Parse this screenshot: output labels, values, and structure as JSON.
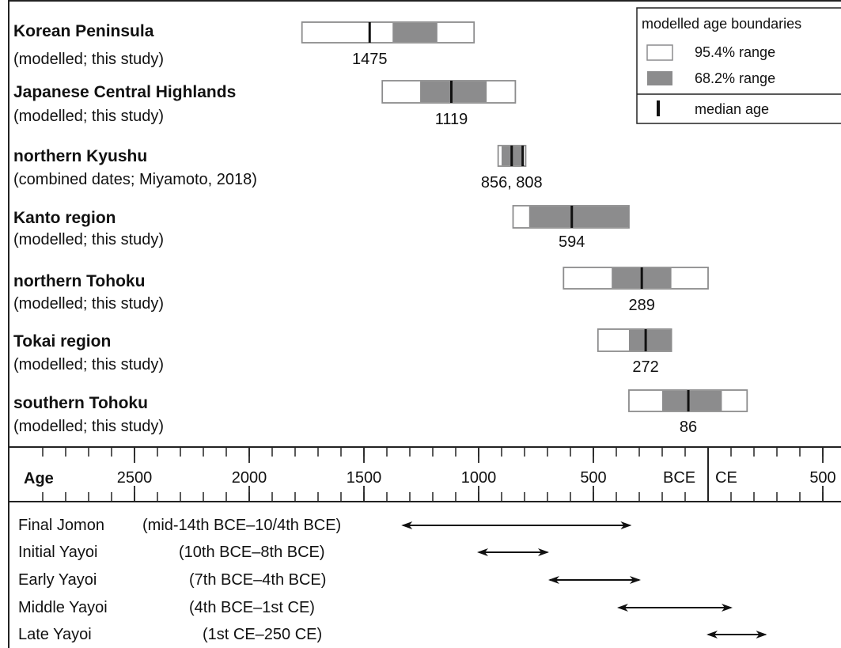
{
  "chart_data": {
    "type": "range-bar",
    "axis": {
      "label": "Age",
      "bce_label": "BCE",
      "ce_label": "CE",
      "xlim": [
        -2990,
        600
      ],
      "major_ticks": [
        {
          "value": -2500,
          "label": "2500"
        },
        {
          "value": -2000,
          "label": "2000"
        },
        {
          "value": -1500,
          "label": "1500"
        },
        {
          "value": -1000,
          "label": "1000"
        },
        {
          "value": -500,
          "label": "500"
        },
        {
          "value": 500,
          "label": "500"
        }
      ],
      "boundary_value": 0,
      "minor_step": 100
    },
    "legend": {
      "title": "modelled age boundaries",
      "items": [
        {
          "key": "range95",
          "label": "95.4% range"
        },
        {
          "key": "range68",
          "label": "68.2% range"
        },
        {
          "key": "median",
          "label": "median age"
        }
      ],
      "position": "top-right"
    },
    "colors": {
      "range68": "#8c8c8d",
      "range95_fill": "#ffffff",
      "range95_stroke": "#8c8c8d",
      "median": "#111111",
      "frame": "#222222"
    },
    "series": [
      {
        "name": "Korean Peninsula",
        "note": "(modelled; this study)",
        "range95": [
          -1770,
          -1020
        ],
        "range68": [
          -1375,
          -1180
        ],
        "median": -1475,
        "medians": [
          -1475
        ],
        "label": "1475"
      },
      {
        "name": "Japanese Central Highlands",
        "note": "(modelled; this study)",
        "range95": [
          -1420,
          -840
        ],
        "range68": [
          -1255,
          -965
        ],
        "median": -1119,
        "medians": [
          -1119
        ],
        "label": "1119"
      },
      {
        "name": "northern Kyushu",
        "note": "(combined dates; Miyamoto, 2018)",
        "range95": [
          -915,
          -795
        ],
        "range68": [
          -900,
          -810
        ],
        "median": -856,
        "medians": [
          -856,
          -808
        ],
        "label": "856, 808"
      },
      {
        "name": "Kanto region",
        "note": "(modelled; this study)",
        "range95": [
          -850,
          -345
        ],
        "range68": [
          -780,
          -345
        ],
        "median": -594,
        "medians": [
          -594
        ],
        "label": "594"
      },
      {
        "name": "northern Tohoku",
        "note": "(modelled; this study)",
        "range95": [
          -630,
          0
        ],
        "range68": [
          -420,
          -160
        ],
        "median": -289,
        "medians": [
          -289
        ],
        "label": "289"
      },
      {
        "name": "Tokai region",
        "note": "(modelled; this study)",
        "range95": [
          -480,
          -160
        ],
        "range68": [
          -345,
          -160
        ],
        "median": -272,
        "medians": [
          -272
        ],
        "label": "272"
      },
      {
        "name": "southern Tohoku",
        "note": "(modelled; this study)",
        "range95": [
          -345,
          170
        ],
        "range68": [
          -200,
          60
        ],
        "median": -86,
        "medians": [
          -86
        ],
        "label": "86"
      }
    ],
    "periods": [
      {
        "name": "Final Jomon",
        "span": "(mid-14th BCE–10/4th BCE)",
        "range": [
          -1330,
          -340
        ]
      },
      {
        "name": "Initial Yayoi",
        "span": "(10th BCE–8th BCE)",
        "range": [
          -1000,
          -700
        ]
      },
      {
        "name": "Early Yayoi",
        "span": "(7th BCE–4th BCE)",
        "range": [
          -690,
          -300
        ]
      },
      {
        "name": "Middle Yayoi",
        "span": "(4th BCE–1st CE)",
        "range": [
          -390,
          100
        ]
      },
      {
        "name": "Late Yayoi",
        "span": "(1st CE–250 CE)",
        "range": [
          0,
          250
        ]
      }
    ]
  }
}
